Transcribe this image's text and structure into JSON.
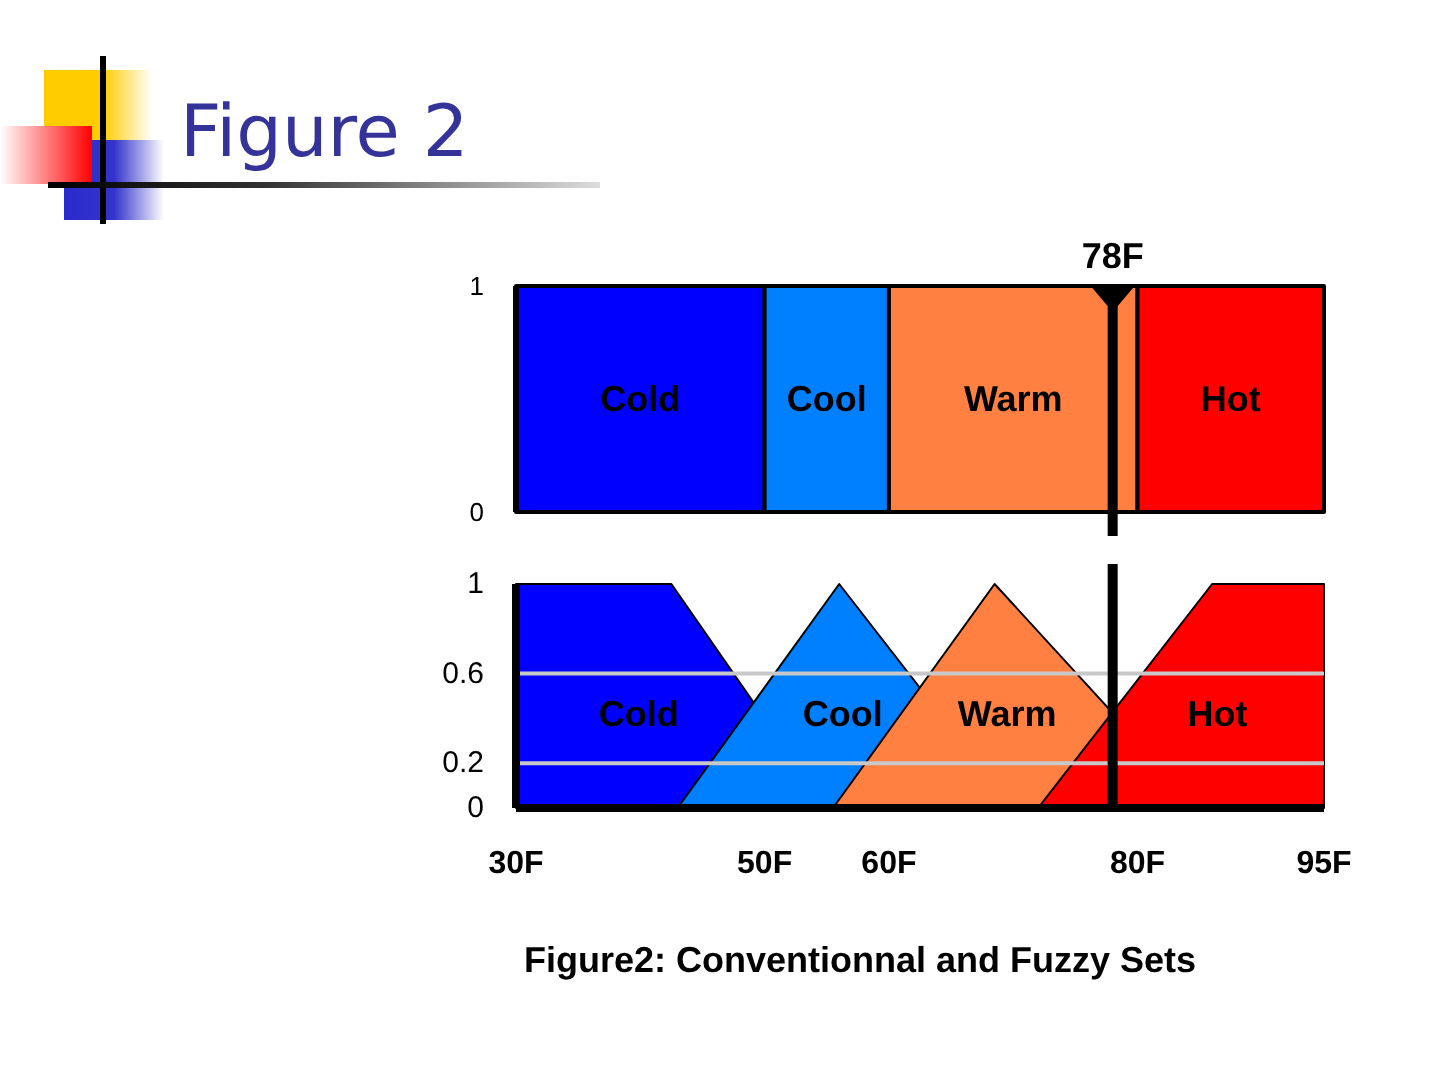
{
  "chart_data": [
    {
      "type": "area",
      "title": "Figure 2",
      "xlim": [
        30,
        95
      ],
      "tick_labels": "y",
      "ylim": [
        0,
        1
      ],
      "yticks": [
        0,
        1
      ],
      "series": [
        {
          "name": "Cold",
          "color": "#0000ff",
          "x": [
            30,
            50
          ],
          "values": [
            1,
            1
          ]
        },
        {
          "name": "Cool",
          "color": "#0080ff",
          "x": [
            50,
            60
          ],
          "values": [
            1,
            1
          ]
        },
        {
          "name": "Warm",
          "color": "#ff8040",
          "x": [
            60,
            80
          ],
          "values": [
            1,
            1
          ]
        },
        {
          "name": "Hot",
          "color": "#ff0000",
          "x": [
            80,
            95
          ],
          "values": [
            1,
            1
          ]
        }
      ],
      "ref_lines": [
        {
          "axis": "x",
          "value": 78,
          "label": "78F"
        }
      ]
    },
    {
      "type": "area",
      "xlim": [
        30,
        95
      ],
      "xticks": [
        {
          "value": 30,
          "label": "30F"
        },
        {
          "value": 50,
          "label": "50F"
        },
        {
          "value": 60,
          "label": "60F"
        },
        {
          "value": 80,
          "label": "80F"
        },
        {
          "value": 95,
          "label": "95F"
        }
      ],
      "ylim": [
        0,
        1
      ],
      "yticks": [
        0,
        0.2,
        0.6,
        1
      ],
      "grid": "y",
      "series": [
        {
          "name": "Cold",
          "color": "#0000ff",
          "x": [
            30,
            42.5,
            55
          ],
          "values": [
            1,
            1,
            0
          ]
        },
        {
          "name": "Cool",
          "color": "#0080ff",
          "x": [
            43,
            56,
            70
          ],
          "values": [
            0,
            1,
            0
          ]
        },
        {
          "name": "Warm",
          "color": "#ff8040",
          "x": [
            55.5,
            68.5,
            85
          ],
          "values": [
            0,
            1,
            0
          ]
        },
        {
          "name": "Hot",
          "color": "#ff0000",
          "x": [
            72,
            86,
            95
          ],
          "values": [
            0,
            1,
            1
          ]
        }
      ],
      "ref_lines": [
        {
          "axis": "x",
          "value": 78
        }
      ],
      "annotations": [
        "Figure2: Conventionnal and Fuzzy Sets"
      ]
    }
  ]
}
